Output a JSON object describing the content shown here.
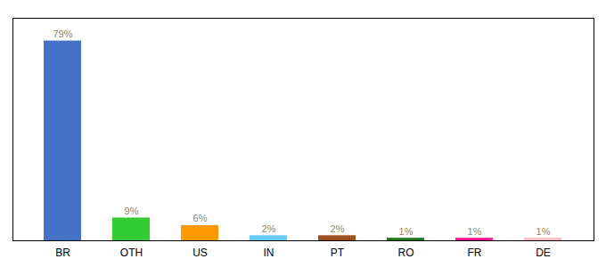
{
  "chart_data": {
    "type": "bar",
    "categories": [
      "BR",
      "OTH",
      "US",
      "IN",
      "PT",
      "RO",
      "FR",
      "DE"
    ],
    "values": [
      79,
      9,
      6,
      2,
      2,
      1,
      1,
      1
    ],
    "value_labels": [
      "79%",
      "9%",
      "6%",
      "2%",
      "2%",
      "1%",
      "1%",
      "1%"
    ],
    "colors": [
      "#4472c4",
      "#33cc33",
      "#ff9900",
      "#66ccff",
      "#a05020",
      "#1a7a1a",
      "#ff1493",
      "#ffb6c1"
    ],
    "ylim": [
      0,
      88
    ],
    "grid": false,
    "data_labels": true,
    "tick_labels": "x"
  }
}
